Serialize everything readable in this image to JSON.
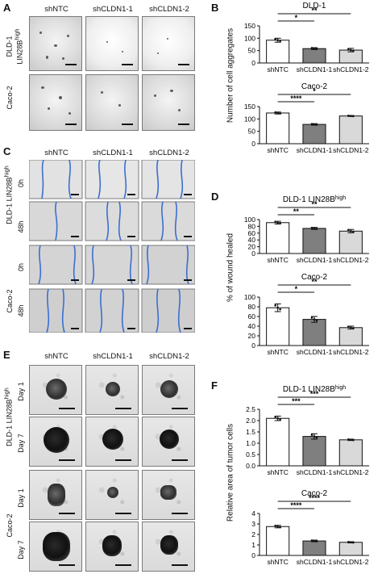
{
  "panels": {
    "A": {
      "label": "A",
      "columns": [
        "shNTC",
        "shCLDN1-1",
        "shCLDN1-2"
      ],
      "rows": [
        "DLD-1 LIN28Bhigh",
        "Caco-2"
      ]
    },
    "C": {
      "label": "C",
      "columns": [
        "shNTC",
        "shCLDN1-1",
        "shCLDN1-2"
      ],
      "groups": [
        "DLD-1 LIN28Bhigh",
        "Caco-2"
      ],
      "times": [
        "0h",
        "48h"
      ]
    },
    "E": {
      "label": "E",
      "columns": [
        "shNTC",
        "shCLDN1-1",
        "shCLDN1-2"
      ],
      "groups": [
        "DLD-1 LIN28Bhigh",
        "Caco-2"
      ],
      "times": [
        "Day 1",
        "Day 7"
      ]
    },
    "B": {
      "label": "B",
      "ylabel": "Number of cell aggregates"
    },
    "D": {
      "label": "D",
      "ylabel": "% of wound healed"
    },
    "F": {
      "label": "F",
      "ylabel": "Relative area of tumor cells"
    }
  },
  "chart_data": [
    {
      "type": "bar",
      "panel": "B",
      "title": "DLD-1",
      "categories": [
        "shNTC",
        "shCLDN1-1",
        "shCLDN1-2"
      ],
      "values": [
        92,
        58,
        52
      ],
      "errors": [
        8,
        4,
        7
      ],
      "ylim": [
        0,
        150
      ],
      "yticks": [
        0,
        50,
        100,
        150
      ],
      "fills": [
        "#ffffff",
        "#7f7f7f",
        "#d9d9d9"
      ],
      "significance": [
        {
          "from": 0,
          "to": 2,
          "label": "**"
        },
        {
          "from": 0,
          "to": 1,
          "label": "*"
        }
      ]
    },
    {
      "type": "bar",
      "panel": "B",
      "title": "Caco-2",
      "categories": [
        "shNTC",
        "shCLDN1-1",
        "shCLDN1-2"
      ],
      "values": [
        124,
        78,
        112
      ],
      "errors": [
        4,
        3,
        2
      ],
      "ylim": [
        0,
        150
      ],
      "yticks": [
        0,
        50,
        100,
        150
      ],
      "fills": [
        "#ffffff",
        "#7f7f7f",
        "#d9d9d9"
      ],
      "significance": [
        {
          "from": 0,
          "to": 2,
          "label": "*"
        },
        {
          "from": 0,
          "to": 1,
          "label": "****"
        }
      ]
    },
    {
      "type": "bar",
      "panel": "D",
      "title": "DLD-1 LIN28B",
      "title_sup": "high",
      "categories": [
        "shNTC",
        "shCLDN1-1",
        "shCLDN1-2"
      ],
      "values": [
        91,
        74,
        66
      ],
      "errors": [
        4,
        3,
        5
      ],
      "ylim": [
        0,
        100
      ],
      "yticks": [
        0,
        20,
        40,
        60,
        80,
        100
      ],
      "fills": [
        "#ffffff",
        "#7f7f7f",
        "#d9d9d9"
      ],
      "significance": [
        {
          "from": 0,
          "to": 2,
          "label": "**"
        },
        {
          "from": 0,
          "to": 1,
          "label": "**"
        }
      ]
    },
    {
      "type": "bar",
      "panel": "D",
      "title": "Caco-2",
      "categories": [
        "shNTC",
        "shCLDN1-1",
        "shCLDN1-2"
      ],
      "values": [
        78,
        54,
        37
      ],
      "errors": [
        8,
        6,
        3
      ],
      "ylim": [
        0,
        100
      ],
      "yticks": [
        0,
        20,
        40,
        60,
        80,
        100
      ],
      "fills": [
        "#ffffff",
        "#7f7f7f",
        "#d9d9d9"
      ],
      "significance": [
        {
          "from": 0,
          "to": 2,
          "label": "**"
        },
        {
          "from": 0,
          "to": 1,
          "label": "*"
        }
      ]
    },
    {
      "type": "bar",
      "panel": "F",
      "title": "DLD-1 LIN28B",
      "title_sup": "high",
      "categories": [
        "shNTC",
        "shCLDN1-1",
        "shCLDN1-2"
      ],
      "values": [
        2.1,
        1.3,
        1.15
      ],
      "errors": [
        0.1,
        0.12,
        0.03
      ],
      "ylim": [
        0,
        2.5
      ],
      "yticks": [
        0.0,
        0.5,
        1.0,
        1.5,
        2.0,
        2.5
      ],
      "fills": [
        "#ffffff",
        "#7f7f7f",
        "#d9d9d9"
      ],
      "significance": [
        {
          "from": 0,
          "to": 2,
          "label": "***"
        },
        {
          "from": 0,
          "to": 1,
          "label": "***"
        }
      ]
    },
    {
      "type": "bar",
      "panel": "F",
      "title": "Caco-2",
      "categories": [
        "shNTC",
        "shCLDN1-1",
        "shCLDN1-2"
      ],
      "values": [
        2.75,
        1.38,
        1.25
      ],
      "errors": [
        0.12,
        0.08,
        0.06
      ],
      "ylim": [
        0,
        4
      ],
      "yticks": [
        0,
        1,
        2,
        3,
        4
      ],
      "fills": [
        "#ffffff",
        "#7f7f7f",
        "#d9d9d9"
      ],
      "significance": [
        {
          "from": 0,
          "to": 2,
          "label": "****"
        },
        {
          "from": 0,
          "to": 1,
          "label": "****"
        }
      ]
    }
  ]
}
